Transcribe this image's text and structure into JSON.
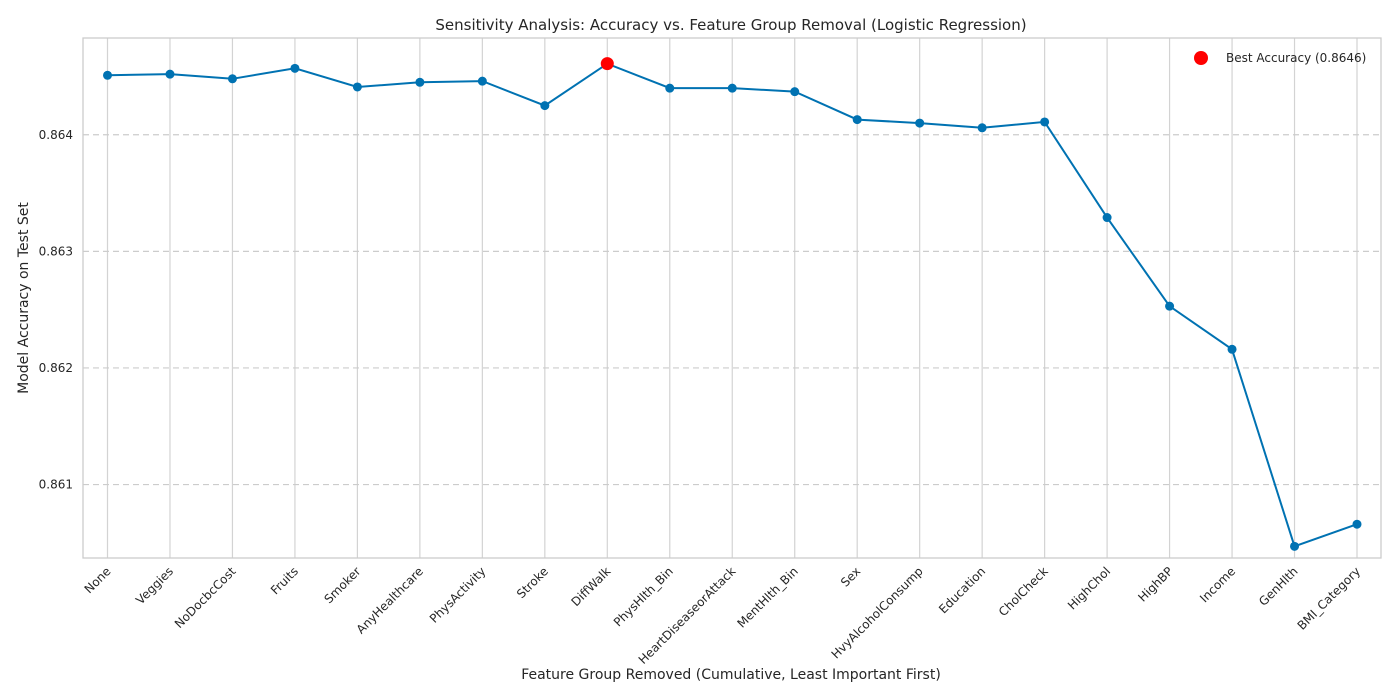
{
  "chart_data": {
    "type": "line",
    "title": "Sensitivity Analysis: Accuracy vs. Feature Group Removal (Logistic Regression)",
    "xlabel": "Feature Group Removed (Cumulative, Least Important First)",
    "ylabel": "Model Accuracy on Test Set",
    "categories": [
      "None",
      "Veggies",
      "NoDocbcCost",
      "Fruits",
      "Smoker",
      "AnyHealthcare",
      "PhysActivity",
      "Stroke",
      "DiffWalk",
      "PhysHlth_Bin",
      "HeartDiseaseorAttack",
      "MentHlth_Bin",
      "Sex",
      "HvyAlcoholConsump",
      "Education",
      "CholCheck",
      "HighChol",
      "HighBP",
      "Income",
      "GenHlth",
      "BMI_Category"
    ],
    "series": [
      {
        "values": [
          0.86451,
          0.86452,
          0.86448,
          0.86457,
          0.86441,
          0.86445,
          0.86446,
          0.86425,
          0.86461,
          0.8644,
          0.8644,
          0.86437,
          0.86413,
          0.8641,
          0.86406,
          0.86411,
          0.86329,
          0.86253,
          0.86216,
          0.86047,
          0.86066
        ],
        "color": "#0072b2"
      }
    ],
    "best": {
      "category": "DiffWalk",
      "value": 0.86461,
      "color": "#ff0000",
      "legend": "Best Accuracy (0.8646)"
    },
    "yticks": [
      "0.861",
      "0.862",
      "0.863",
      "0.864"
    ],
    "ytick_values": [
      0.861,
      0.862,
      0.863,
      0.864
    ],
    "ylim": [
      0.86037,
      0.86483
    ],
    "grid": true,
    "legend_position": "top-right"
  }
}
